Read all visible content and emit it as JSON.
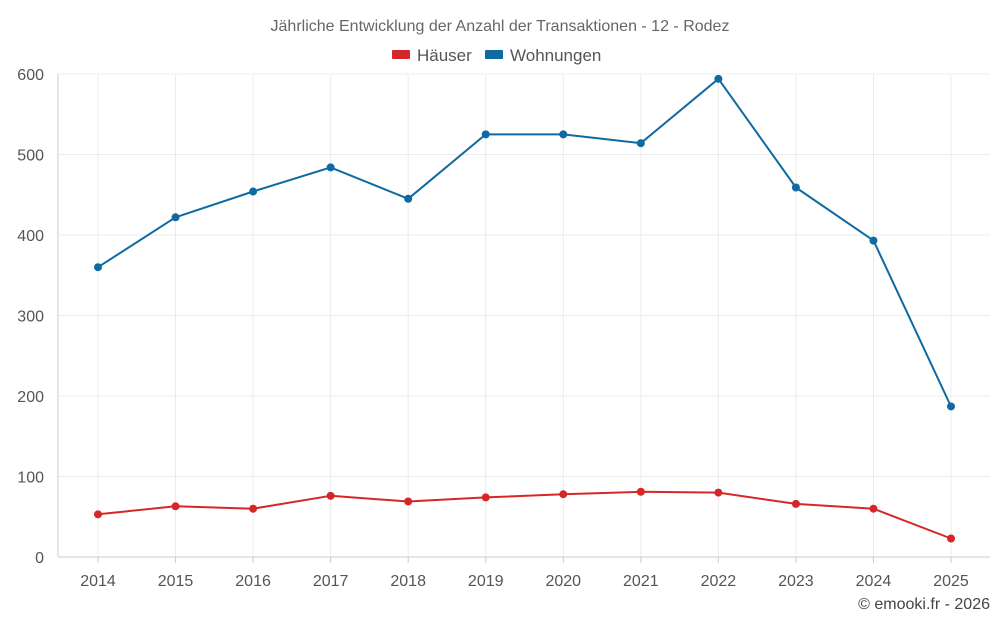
{
  "chart_data": {
    "type": "line",
    "title": "Jährliche Entwicklung der Anzahl der Transaktionen - 12 - Rodez",
    "categories": [
      "2014",
      "2015",
      "2016",
      "2017",
      "2018",
      "2019",
      "2020",
      "2021",
      "2022",
      "2023",
      "2024",
      "2025"
    ],
    "series": [
      {
        "name": "Häuser",
        "color": "#d62728",
        "values": [
          53,
          63,
          60,
          76,
          69,
          74,
          78,
          81,
          80,
          66,
          60,
          23
        ]
      },
      {
        "name": "Wohnungen",
        "color": "#0f6aa2",
        "values": [
          360,
          422,
          454,
          484,
          445,
          525,
          525,
          514,
          594,
          459,
          393,
          187
        ]
      }
    ],
    "ylim": [
      0,
      600
    ],
    "yticks": [
      "0",
      "100",
      "200",
      "300",
      "400",
      "500",
      "600"
    ],
    "xlabel": "",
    "ylabel": "",
    "grid": true,
    "legend_position": "top-center"
  },
  "credit": "© emooki.fr - 2026"
}
